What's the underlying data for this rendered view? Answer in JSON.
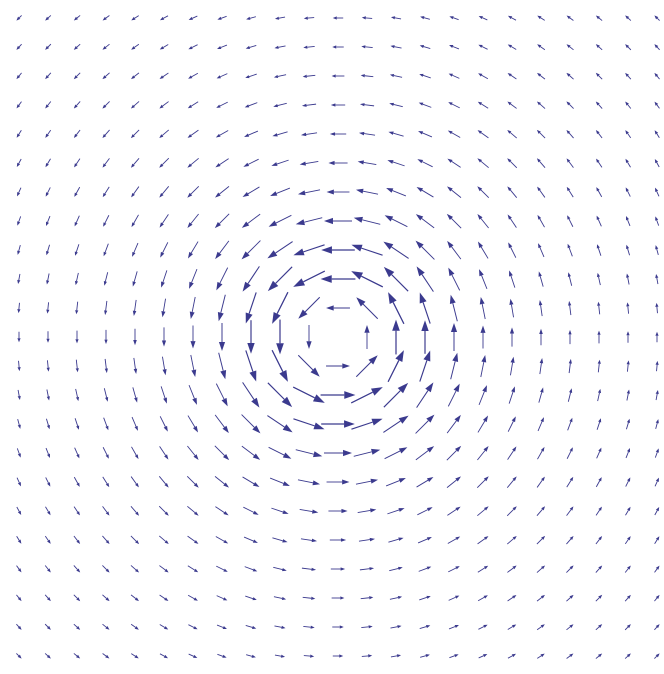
{
  "color": "#3b3a8e"
}
